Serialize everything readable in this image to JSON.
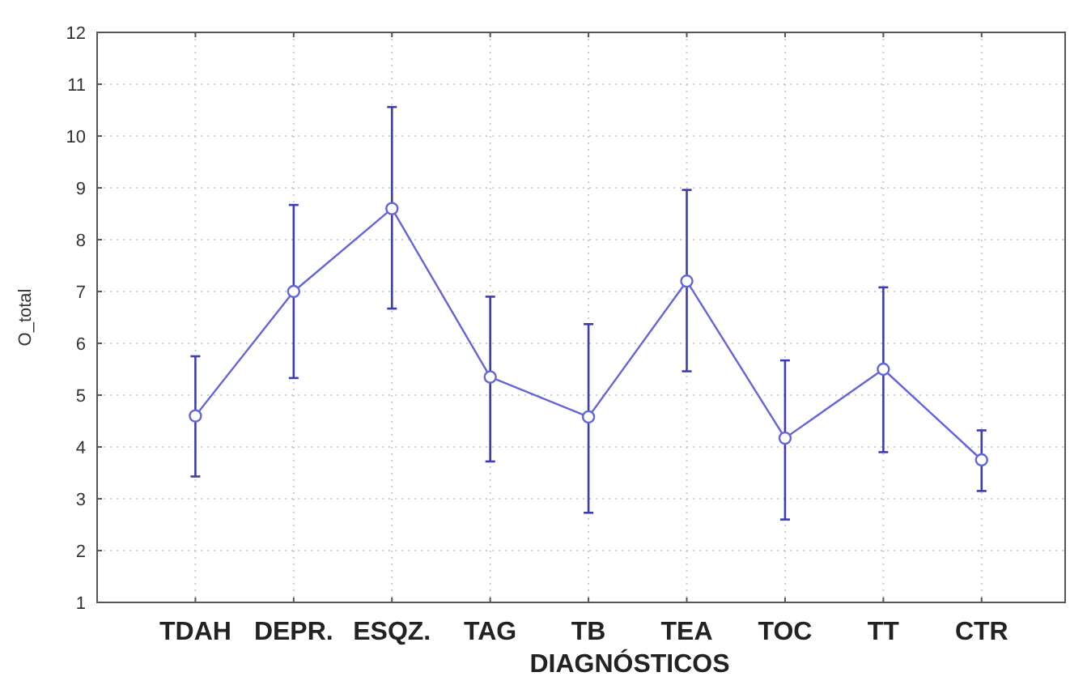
{
  "chart_data": {
    "type": "line",
    "xlabel": "DIAGNÓSTICOS",
    "ylabel": "O_total",
    "categories": [
      "TDAH",
      "DEPR.",
      "ESQZ.",
      "TAG",
      "TB",
      "TEA",
      "TOC",
      "TT",
      "CTR"
    ],
    "series": [
      {
        "color": "#6464dc",
        "values": [
          4.6,
          7.0,
          8.6,
          5.35,
          4.58,
          7.2,
          4.17,
          5.5,
          3.75
        ],
        "errors": [
          [
            3.43,
            5.75
          ],
          [
            5.33,
            8.67
          ],
          [
            6.67,
            10.56
          ],
          [
            3.72,
            6.9
          ],
          [
            2.73,
            6.37
          ],
          [
            5.46,
            8.96
          ],
          [
            2.6,
            5.67
          ],
          [
            3.9,
            7.08
          ],
          [
            3.15,
            4.32
          ]
        ]
      }
    ],
    "ylim": [
      1,
      12
    ],
    "yticks": [
      1,
      2,
      3,
      4,
      5,
      6,
      7,
      8,
      9,
      10,
      11,
      12
    ],
    "grid": true,
    "marker": "circle",
    "line_style": "solid"
  }
}
